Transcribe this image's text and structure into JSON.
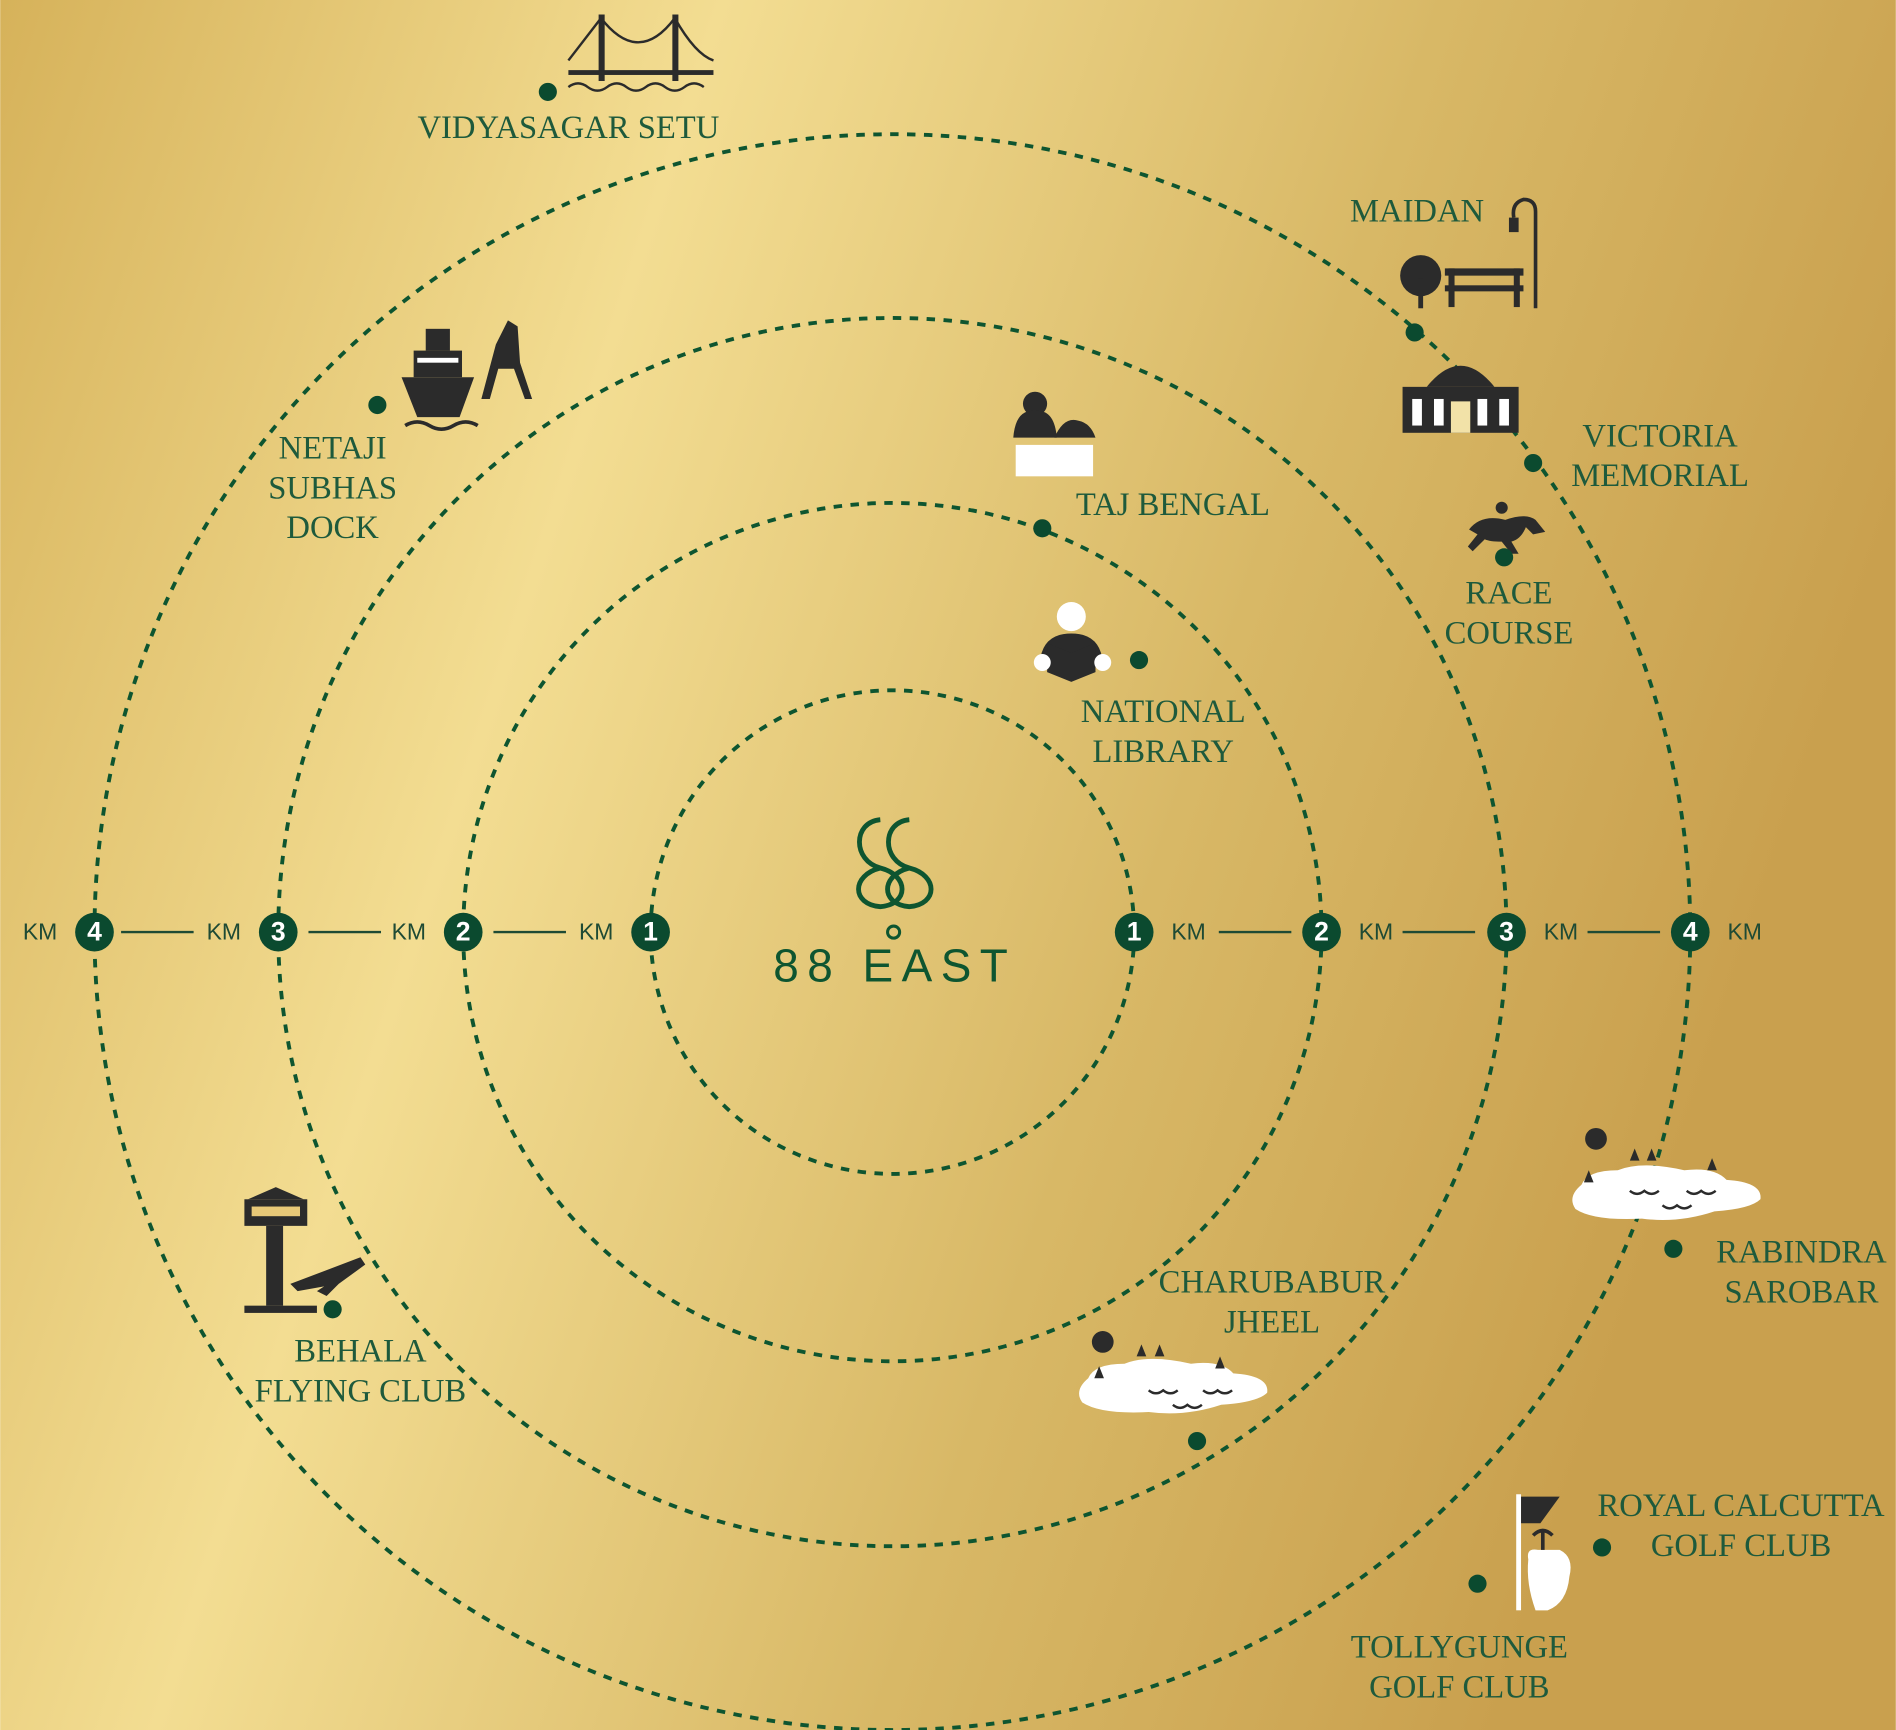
{
  "center": {
    "title": "88 EAST"
  },
  "distance_unit": "KM",
  "rings": [
    "1",
    "2",
    "3",
    "4"
  ],
  "landmarks": [
    {
      "lines": [
        "VIDYASAGAR SETU"
      ]
    },
    {
      "lines": [
        "MAIDAN"
      ]
    },
    {
      "lines": [
        "VICTORIA",
        "MEMORIAL"
      ]
    },
    {
      "lines": [
        "TAJ BENGAL"
      ]
    },
    {
      "lines": [
        "RACE",
        "COURSE"
      ]
    },
    {
      "lines": [
        "NATIONAL",
        "LIBRARY"
      ]
    },
    {
      "lines": [
        "NETAJI",
        "SUBHAS",
        "DOCK"
      ]
    },
    {
      "lines": [
        "BEHALA",
        "FLYING CLUB"
      ]
    },
    {
      "lines": [
        "CHARUBABUR",
        "JHEEL"
      ]
    },
    {
      "lines": [
        "RABINDRA",
        "SAROBAR"
      ]
    },
    {
      "lines": [
        "ROYAL CALCUTTA",
        "GOLF CLUB"
      ]
    },
    {
      "lines": [
        "TOLLYGUNGE",
        "GOLF CLUB"
      ]
    }
  ]
}
